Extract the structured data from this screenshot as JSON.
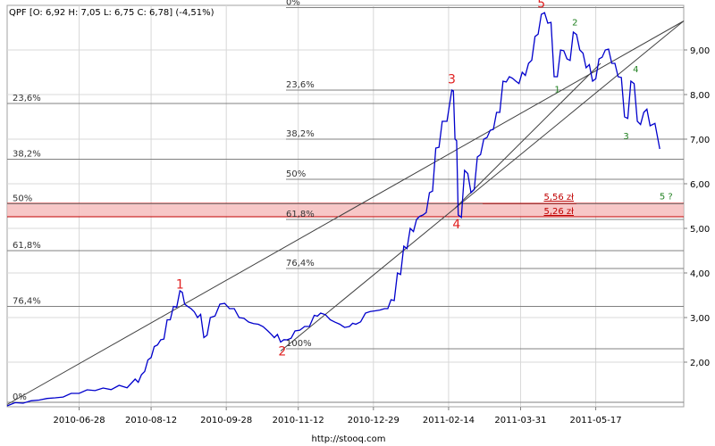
{
  "header": {
    "ohlc_text": "QPF [O: 6,92  H: 7,05  L: 6,75  C: 6,78] (-4,51%)"
  },
  "footer": {
    "source_url": "http://stooq.com"
  },
  "colors": {
    "price": "#0000cc",
    "fib_line": "#808080",
    "zone_fill": "#f4b4b4",
    "zone_border": "#c00000",
    "wave_major": "#e02020",
    "wave_minor": "#208020",
    "grid": "#d8d8d8"
  },
  "chart_data": {
    "type": "line",
    "y_axis": {
      "ylim": [
        1.0,
        10.0
      ],
      "ticks": [
        2.0,
        3.0,
        4.0,
        5.0,
        6.0,
        7.0,
        8.0,
        9.0
      ],
      "tick_labels": [
        "2,00",
        "3,00",
        "4,00",
        "5,00",
        "6,00",
        "7,00",
        "8,00",
        "9,00"
      ]
    },
    "x_axis": {
      "xlim": [
        "2010-05-14",
        "2011-07-11"
      ],
      "tick_dates": [
        "2010-06-28",
        "2010-08-12",
        "2010-09-28",
        "2010-11-12",
        "2010-12-29",
        "2011-02-14",
        "2011-03-31",
        "2011-05-17"
      ]
    },
    "price_series": [
      [
        "2010-05-14",
        1.02
      ],
      [
        "2010-05-24",
        1.08
      ],
      [
        "2010-06-03",
        1.15
      ],
      [
        "2010-06-13",
        1.2
      ],
      [
        "2010-06-23",
        1.3
      ],
      [
        "2010-07-03",
        1.38
      ],
      [
        "2010-07-13",
        1.42
      ],
      [
        "2010-07-23",
        1.48
      ],
      [
        "2010-08-02",
        1.62
      ],
      [
        "2010-08-06",
        1.72
      ],
      [
        "2010-08-10",
        2.05
      ],
      [
        "2010-08-14",
        2.35
      ],
      [
        "2010-08-18",
        2.5
      ],
      [
        "2010-08-22",
        2.95
      ],
      [
        "2010-08-26",
        3.25
      ],
      [
        "2010-08-30",
        3.6
      ],
      [
        "2010-09-02",
        3.3
      ],
      [
        "2010-09-06",
        3.2
      ],
      [
        "2010-09-10",
        3.0
      ],
      [
        "2010-09-14",
        2.55
      ],
      [
        "2010-09-18",
        3.0
      ],
      [
        "2010-09-24",
        3.3
      ],
      [
        "2010-09-30",
        3.2
      ],
      [
        "2010-10-06",
        3.0
      ],
      [
        "2010-10-12",
        2.9
      ],
      [
        "2010-10-18",
        2.85
      ],
      [
        "2010-10-24",
        2.7
      ],
      [
        "2010-10-28",
        2.55
      ],
      [
        "2010-11-01",
        2.45
      ],
      [
        "2010-11-05",
        2.5
      ],
      [
        "2010-11-10",
        2.7
      ],
      [
        "2010-11-16",
        2.8
      ],
      [
        "2010-11-22",
        3.05
      ],
      [
        "2010-11-26",
        3.1
      ],
      [
        "2010-12-02",
        2.95
      ],
      [
        "2010-12-08",
        2.85
      ],
      [
        "2010-12-14",
        2.8
      ],
      [
        "2010-12-18",
        2.85
      ],
      [
        "2010-12-24",
        3.1
      ],
      [
        "2010-12-30",
        3.15
      ],
      [
        "2011-01-05",
        3.2
      ],
      [
        "2011-01-09",
        3.4
      ],
      [
        "2011-01-13",
        4.0
      ],
      [
        "2011-01-17",
        4.6
      ],
      [
        "2011-01-21",
        5.0
      ],
      [
        "2011-01-25",
        5.2
      ],
      [
        "2011-01-29",
        5.3
      ],
      [
        "2011-02-02",
        5.8
      ],
      [
        "2011-02-06",
        6.8
      ],
      [
        "2011-02-10",
        7.4
      ],
      [
        "2011-02-16",
        8.1
      ],
      [
        "2011-02-18",
        7.0
      ],
      [
        "2011-02-20",
        5.3
      ],
      [
        "2011-02-24",
        6.3
      ],
      [
        "2011-02-28",
        5.8
      ],
      [
        "2011-03-04",
        6.6
      ],
      [
        "2011-03-08",
        7.0
      ],
      [
        "2011-03-12",
        7.2
      ],
      [
        "2011-03-16",
        7.6
      ],
      [
        "2011-03-20",
        8.3
      ],
      [
        "2011-03-24",
        8.4
      ],
      [
        "2011-03-28",
        8.3
      ],
      [
        "2011-04-01",
        8.5
      ],
      [
        "2011-04-05",
        8.7
      ],
      [
        "2011-04-09",
        9.3
      ],
      [
        "2011-04-13",
        9.8
      ],
      [
        "2011-04-17",
        9.6
      ],
      [
        "2011-04-21",
        8.4
      ],
      [
        "2011-04-25",
        9.0
      ],
      [
        "2011-04-29",
        8.8
      ],
      [
        "2011-05-03",
        9.4
      ],
      [
        "2011-05-07",
        9.0
      ],
      [
        "2011-05-11",
        8.6
      ],
      [
        "2011-05-15",
        8.3
      ],
      [
        "2011-05-19",
        8.8
      ],
      [
        "2011-05-23",
        9.0
      ],
      [
        "2011-05-27",
        8.7
      ],
      [
        "2011-05-31",
        8.4
      ],
      [
        "2011-06-04",
        7.5
      ],
      [
        "2011-06-08",
        8.3
      ],
      [
        "2011-06-12",
        7.4
      ],
      [
        "2011-06-16",
        7.6
      ],
      [
        "2011-06-20",
        7.3
      ],
      [
        "2011-06-26",
        6.78
      ]
    ],
    "fibonacci_left": [
      {
        "label": "0%",
        "value": 1.1
      },
      {
        "label": "23,6%",
        "value": 7.8
      },
      {
        "label": "38,2%",
        "value": 6.55
      },
      {
        "label": "50%",
        "value": 5.55
      },
      {
        "label": "61,8%",
        "value": 4.5
      },
      {
        "label": "76,4%",
        "value": 3.25
      }
    ],
    "fibonacci_right": [
      {
        "label": "0%",
        "value": 9.95
      },
      {
        "label": "23,6%",
        "value": 8.1
      },
      {
        "label": "38,2%",
        "value": 7.0
      },
      {
        "label": "50%",
        "value": 6.1
      },
      {
        "label": "61,8%",
        "value": 5.2
      },
      {
        "label": "76,4%",
        "value": 4.1
      },
      {
        "label": "100%",
        "value": 2.3
      }
    ],
    "support_zone": {
      "lower": 5.26,
      "upper": 5.56
    },
    "price_labels": [
      {
        "label": "5,56 zł",
        "value": 5.56
      },
      {
        "label": "5,26 zł",
        "value": 5.26
      }
    ],
    "trendlines": [
      {
        "from": [
          "2010-05-14",
          1.05
        ],
        "to": [
          "2011-07-11",
          9.65
        ]
      },
      {
        "from": [
          "2010-11-01",
          2.25
        ],
        "to": [
          "2011-07-11",
          9.65
        ]
      },
      {
        "from": [
          "2011-02-18",
          5.45
        ],
        "to": [
          "2011-05-20",
          8.7
        ]
      }
    ],
    "wave_labels_major": [
      {
        "label": "1",
        "date": "2010-08-30",
        "value": 3.65
      },
      {
        "label": "2",
        "date": "2010-11-02",
        "value": 2.15
      },
      {
        "label": "3",
        "date": "2011-02-16",
        "value": 8.25
      },
      {
        "label": "4",
        "date": "2011-02-19",
        "value": 5.0
      },
      {
        "label": "5",
        "date": "2011-04-13",
        "value": 9.95
      }
    ],
    "wave_labels_minor": [
      {
        "label": "1",
        "date": "2011-04-23",
        "value": 8.05
      },
      {
        "label": "2",
        "date": "2011-05-04",
        "value": 9.55
      },
      {
        "label": "3",
        "date": "2011-06-05",
        "value": 7.0
      },
      {
        "label": "4",
        "date": "2011-06-11",
        "value": 8.5
      },
      {
        "label": "5 ?",
        "date": "2011-06-30",
        "value": 5.65
      }
    ]
  }
}
